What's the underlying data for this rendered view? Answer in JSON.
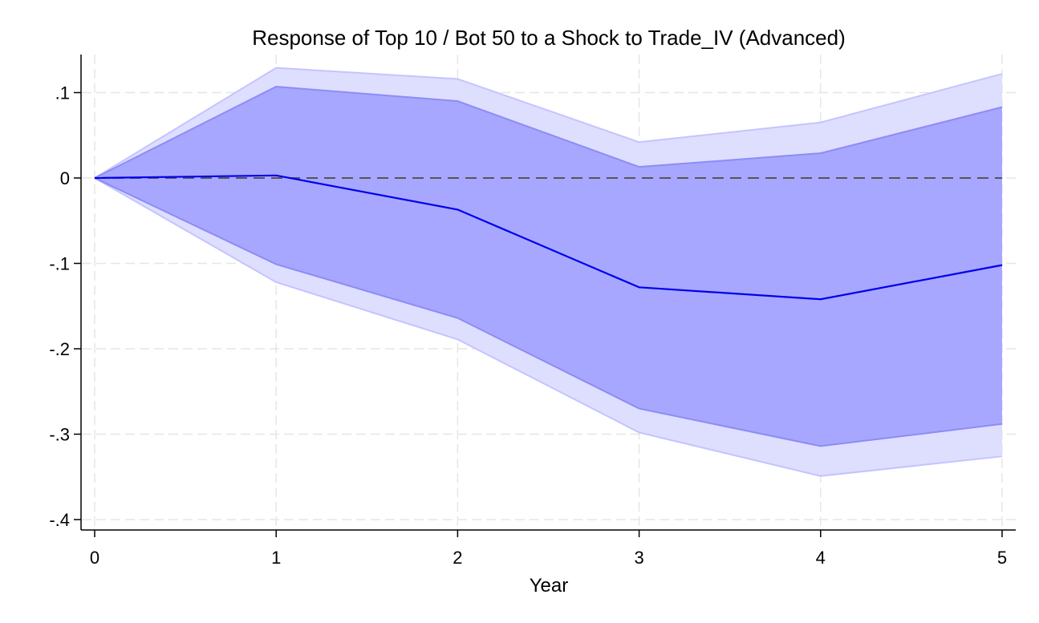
{
  "chart_data": {
    "type": "line",
    "title": "Response of Top 10 / Bot 50 to a Shock to Trade_IV (Advanced)",
    "xlabel": "Year",
    "ylabel": "",
    "x": [
      0,
      1,
      2,
      3,
      4,
      5
    ],
    "xlim": [
      0,
      5
    ],
    "ylim": [
      -0.4,
      0.1
    ],
    "xticks": [
      {
        "value": 0,
        "label": "0"
      },
      {
        "value": 1,
        "label": "1"
      },
      {
        "value": 2,
        "label": "2"
      },
      {
        "value": 3,
        "label": "3"
      },
      {
        "value": 4,
        "label": "4"
      },
      {
        "value": 5,
        "label": "5"
      }
    ],
    "yticks": [
      {
        "value": 0.1,
        "label": ".1"
      },
      {
        "value": 0,
        "label": "0"
      },
      {
        "value": -0.1,
        "label": "-.1"
      },
      {
        "value": -0.2,
        "label": "-.2"
      },
      {
        "value": -0.3,
        "label": "-.3"
      },
      {
        "value": -0.4,
        "label": "-.4"
      }
    ],
    "grid": true,
    "reference_line": 0,
    "series": [
      {
        "role": "response",
        "values": [
          0,
          0.003,
          -0.037,
          -0.128,
          -0.142,
          -0.102
        ],
        "color": "#0000ee"
      }
    ],
    "bands": [
      {
        "role": "outer-band",
        "upper": [
          0,
          0.129,
          0.116,
          0.042,
          0.065,
          0.122
        ],
        "lower": [
          0,
          -0.122,
          -0.189,
          -0.298,
          -0.349,
          -0.326
        ],
        "color": "#dedeff"
      },
      {
        "role": "inner-band",
        "upper": [
          0,
          0.107,
          0.09,
          0.013,
          0.029,
          0.083
        ],
        "lower": [
          0,
          -0.101,
          -0.164,
          -0.27,
          -0.314,
          -0.288
        ],
        "color": "#a7a7ff"
      }
    ],
    "colors": {
      "line": "#0000ee",
      "outer_band": "#dedeff",
      "outer_band_edge": "#c4c4ff",
      "inner_band": "#a7a7ff",
      "inner_band_edge": "#8c8cf5",
      "reference": "#555555",
      "grid": "#e6e6e6",
      "axis": "#000000"
    }
  }
}
